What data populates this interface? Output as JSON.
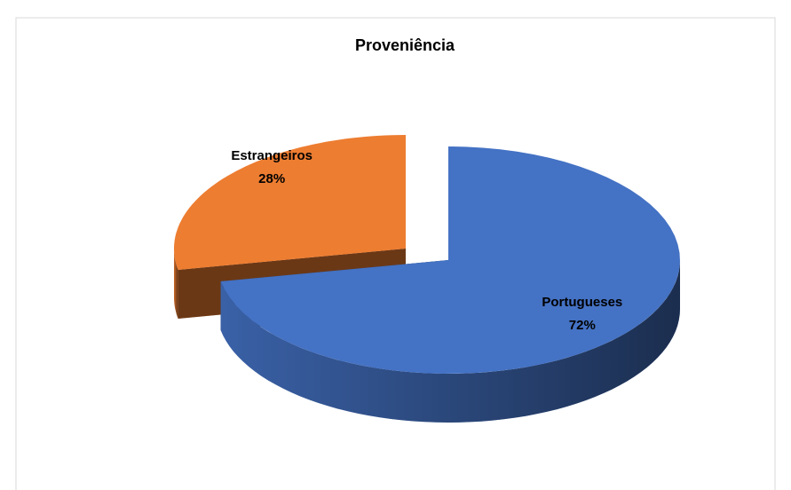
{
  "chart_data": {
    "type": "pie",
    "title": "Proveniência",
    "categories": [
      "Portugueses",
      "Estrangeiros"
    ],
    "values": [
      72,
      28
    ],
    "value_labels": [
      "72%",
      "28%"
    ],
    "colors": [
      "#4472c4",
      "#ed7d31"
    ]
  }
}
